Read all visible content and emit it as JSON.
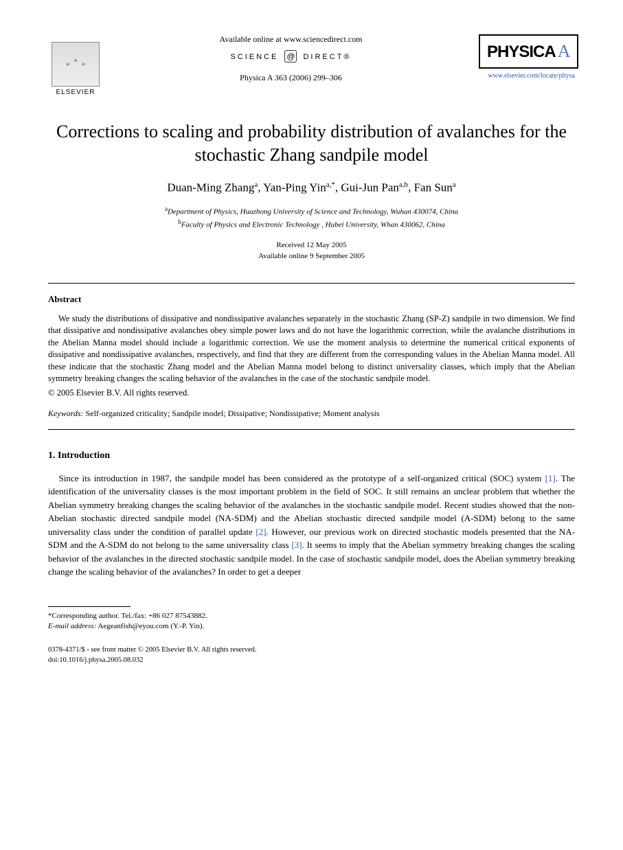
{
  "header": {
    "available_online": "Available online at www.sciencedirect.com",
    "science_direct_left": "SCIENCE",
    "science_direct_right": "DIRECT®",
    "journal_ref": "Physica A 363 (2006) 299–306",
    "elsevier_label": "ELSEVIER",
    "physica_label": "PHYSICA",
    "physica_letter": "A",
    "journal_url": "www.elsevier.com/locate/physa"
  },
  "title": "Corrections to scaling and probability distribution of avalanches for the stochastic Zhang sandpile model",
  "authors_html": "Duan-Ming Zhang<sup>a</sup>, Yan-Ping Yin<sup>a,*</sup>, Gui-Jun Pan<sup>a,b</sup>, Fan Sun<sup>a</sup>",
  "affiliations": {
    "a": "Department of Physics, Huazhong University of Science and Technology, Wuhan 430074, China",
    "b": "Faculty of Physics and Electronic Technology , Hubei University, Whan 430062, China"
  },
  "dates": {
    "received": "Received 12 May 2005",
    "online": "Available online 9 September 2005"
  },
  "abstract": {
    "heading": "Abstract",
    "body": "We study the distributions of dissipative and nondissipative avalanches separately in the stochastic Zhang (SP-Z) sandpile in two dimension. We find that dissipative and nondissipative avalanches obey simple power laws and do not have the logarithmic correction, while the avalanche distributions in the Abelian Manna model should include a logarithmic correction. We use the moment analysis to determine the numerical critical exponents of dissipative and nondissipative avalanches, respectively, and find that they are different from the corresponding values in the Abelian Manna model. All these indicate that the stochastic Zhang model and the Abelian Manna model belong to distinct universality classes, which imply that the Abelian symmetry breaking changes the scaling behavior of the avalanches in the case of the stochastic sandpile model.",
    "copyright": "© 2005 Elsevier B.V. All rights reserved."
  },
  "keywords": {
    "label": "Keywords:",
    "text": " Self-organized criticality; Sandpile model; Dissipative; Nondissipative; Moment analysis"
  },
  "section1": {
    "heading": "1. Introduction",
    "body_parts": [
      "Since its introduction in 1987, the sandpile model has been considered as the prototype of a self-organized critical (SOC) system ",
      "[1]",
      ". The identification of the universality classes is the most important problem in the field of SOC. It still remains an unclear problem that whether the Abelian symmetry breaking changes the scaling behavior of the avalanches in the stochastic sandpile model. Recent studies showed that the non-Abelian stochastic directed sandpile model (NA-SDM) and the Abelian stochastic directed sandpile model (A-SDM) belong to the same universality class under the condition of parallel update ",
      "[2]",
      ". However, our previous work on directed stochastic models presented that the NA-SDM and the A-SDM do not belong to the same universality class ",
      "[3]",
      ". It seems to imply that the Abelian symmetry breaking changes the scaling behavior of the avalanches in the directed stochastic sandpile model. In the case of stochastic sandpile model, does the Abelian symmetry breaking change the scaling behavior of the avalanches? In order to get a deeper"
    ]
  },
  "footnote": {
    "corresponding": "*Corresponding author. Tel./fax: +86 027 87543882.",
    "email_label": "E-mail address:",
    "email": " Aegeanfish@eyou.com (Y.-P. Yin)."
  },
  "footer": {
    "line1": "0378-4371/$ - see front matter © 2005 Elsevier B.V. All rights reserved.",
    "line2": "doi:10.1016/j.physa.2005.08.032"
  },
  "colors": {
    "link": "#3355bb",
    "text": "#000000",
    "background": "#ffffff"
  },
  "typography": {
    "title_fontsize": 26,
    "author_fontsize": 17,
    "body_fontsize": 13,
    "abstract_fontsize": 12.5,
    "footnote_fontsize": 11
  }
}
